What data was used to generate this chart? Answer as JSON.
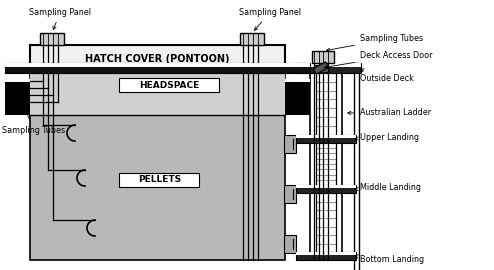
{
  "bg_color": "#ffffff",
  "hold_color": "#b8b8b8",
  "headspace_color": "#d0d0d0",
  "hatch_color": "#f0f0f0",
  "panel_color": "#cccccc",
  "title_hatch": "HATCH COVER (PONTOON)",
  "title_headspace": "HEADSPACE",
  "title_pellets": "PELLETS",
  "label_sampling_panel_left": "Sampling Panel",
  "label_sampling_panel_right": "Sampling Panel",
  "label_sampling_tubes_top": "Sampling Tubes",
  "label_deck_access": "Deck Access Door",
  "label_outside_deck": "Outside Deck",
  "label_australian_ladder": "Australian Ladder",
  "label_upper_landing": "Upper Landing",
  "label_middle_landing": "Middle Landing",
  "label_bottom_landing": "Bottom Landing",
  "label_sampling_tubes_left": "Sampling Tubes"
}
